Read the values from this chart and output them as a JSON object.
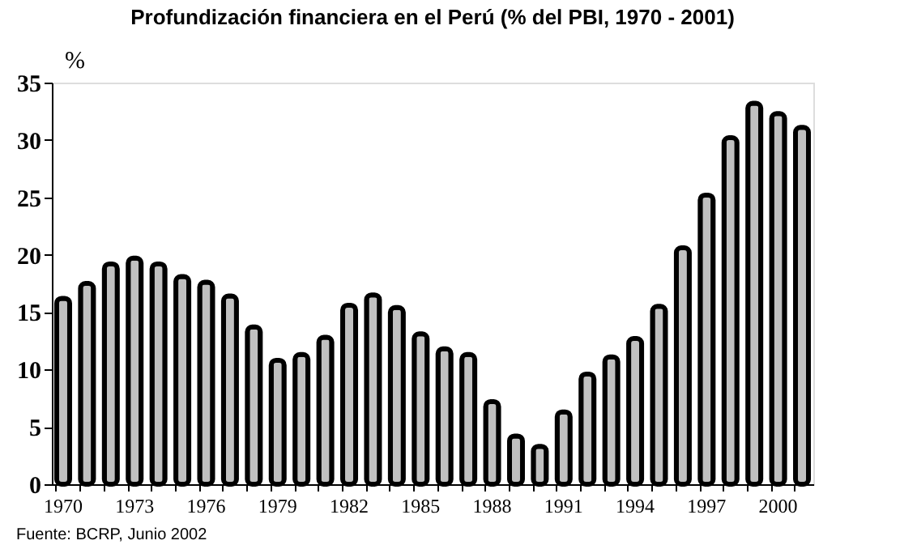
{
  "chart_data": {
    "type": "bar",
    "title": "Profundización financiera en el Perú (% del PBI, 1970 - 2001)",
    "ylabel": "%",
    "categories": [
      "1970",
      null,
      null,
      "1973",
      null,
      null,
      "1976",
      null,
      null,
      "1979",
      null,
      null,
      "1982",
      null,
      null,
      "1985",
      null,
      null,
      "1988",
      null,
      null,
      "1991",
      null,
      null,
      "1994",
      null,
      null,
      "1997",
      null,
      null,
      "2000",
      null
    ],
    "values": [
      16.2,
      17.5,
      19.2,
      19.7,
      19.2,
      18.1,
      17.6,
      16.4,
      13.7,
      10.8,
      11.3,
      12.8,
      15.6,
      16.5,
      15.4,
      13.1,
      11.8,
      11.3,
      7.2,
      4.2,
      3.3,
      6.3,
      9.6,
      11.1,
      12.7,
      15.5,
      20.6,
      25.2,
      30.2,
      33.2,
      32.3,
      31.1
    ],
    "color": "#c0c0c0",
    "ylim": [
      0,
      35
    ],
    "yticks": [
      0,
      5,
      10,
      15,
      20,
      25,
      30,
      35
    ],
    "grid": false,
    "annotations": [
      "Fuente: BCRP, Junio 2002"
    ]
  }
}
